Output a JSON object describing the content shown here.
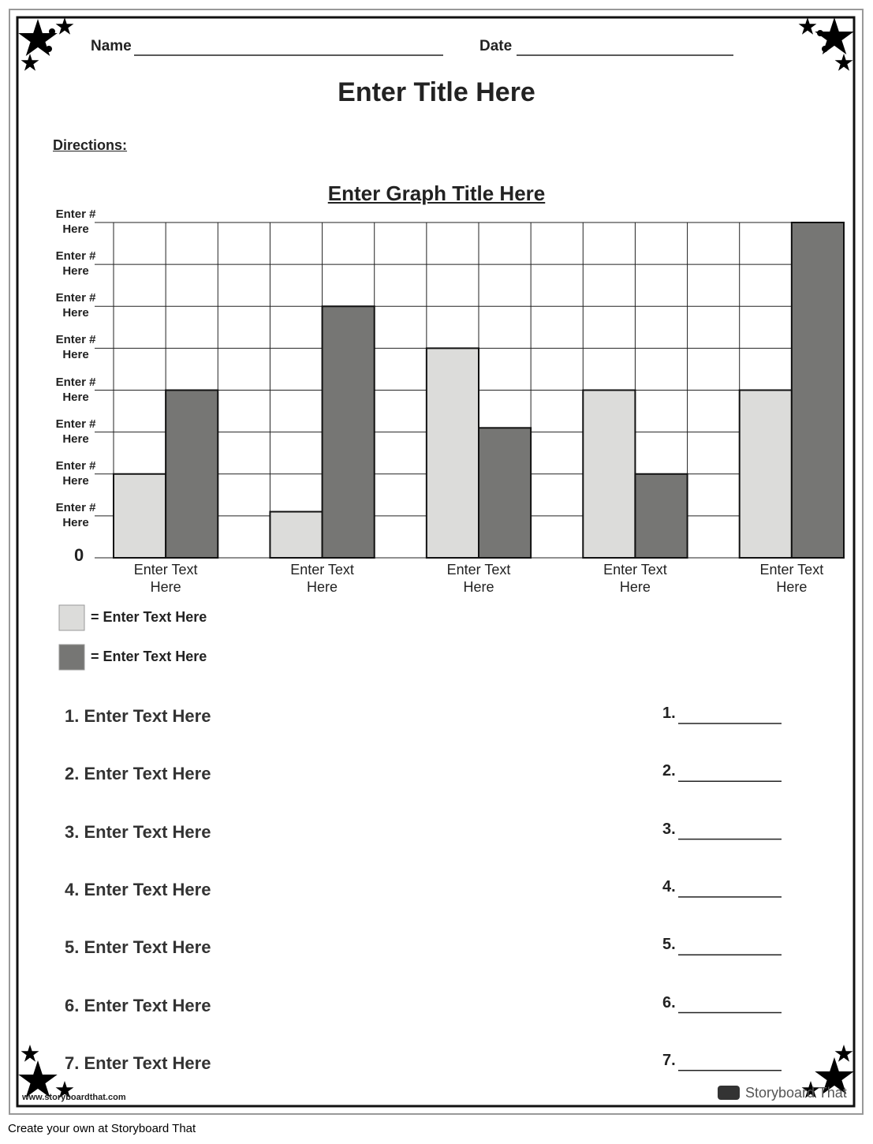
{
  "header": {
    "name_label": "Name",
    "date_label": "Date",
    "title": "Enter Title Here",
    "directions": "Directions:"
  },
  "chart_data": {
    "type": "bar",
    "title": "Enter Graph Title Here",
    "categories": [
      "Enter Text Here",
      "Enter Text Here",
      "Enter Text Here",
      "Enter Text Here",
      "Enter Text Here"
    ],
    "series": [
      {
        "name": "= Enter Text Here",
        "color": "#dcdcda",
        "values": [
          2,
          1.1,
          5,
          4,
          4
        ]
      },
      {
        "name": "= Enter Text Here",
        "color": "#767674",
        "values": [
          4,
          6,
          3.1,
          2,
          8
        ]
      }
    ],
    "ylim": [
      0,
      8
    ],
    "yticks": [
      0,
      {
        "value": 1,
        "label": "Enter # Here"
      },
      {
        "value": 2,
        "label": "Enter # Here"
      },
      {
        "value": 3,
        "label": "Enter # Here"
      },
      {
        "value": 4,
        "label": "Enter # Here"
      },
      {
        "value": 5,
        "label": "Enter # Here"
      },
      {
        "value": 6,
        "label": "Enter # Here"
      },
      {
        "value": 7,
        "label": "Enter # Here"
      },
      {
        "value": 8,
        "label": "Enter # Here"
      }
    ],
    "grid": true
  },
  "questions": [
    "1. Enter Text Here",
    "2. Enter Text Here",
    "3. Enter Text Here",
    "4. Enter Text Here",
    "5. Enter Text Here",
    "6. Enter Text Here",
    "7. Enter Text Here"
  ],
  "answers": [
    "1.",
    "2.",
    "3.",
    "4.",
    "5.",
    "6.",
    "7."
  ],
  "footer": {
    "url": "www.storyboardthat.com",
    "brand": "Storyboard That",
    "credit": "Create your own at Storyboard That"
  }
}
